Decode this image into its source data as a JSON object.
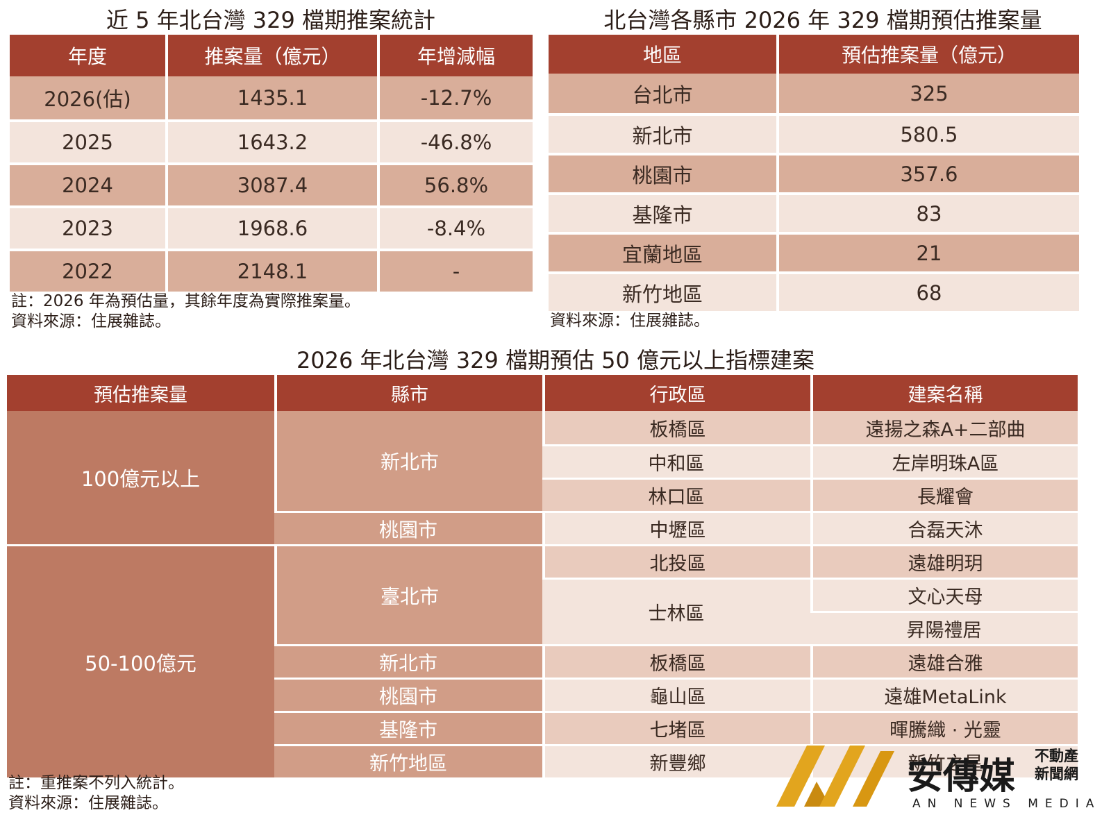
{
  "table1": {
    "title": "近 5 年北台灣 329 檔期推案統計",
    "headers": [
      "年度",
      "推案量（億元）",
      "年增減幅"
    ],
    "rows": [
      [
        "2026(估)",
        "1435.1",
        "-12.7%"
      ],
      [
        "2025",
        "1643.2",
        "-46.8%"
      ],
      [
        "2024",
        "3087.4",
        "56.8%"
      ],
      [
        "2023",
        "1968.6",
        "-8.4%"
      ],
      [
        "2022",
        "2148.1",
        "-"
      ]
    ],
    "note1": "註：2026 年為預估量，其餘年度為實際推案量。",
    "note2": "資料來源：住展雜誌。"
  },
  "table2": {
    "title": "北台灣各縣市 2026 年 329 檔期預估推案量",
    "headers": [
      "地區",
      "預估推案量（億元）"
    ],
    "rows": [
      [
        "台北市",
        "325"
      ],
      [
        "新北市",
        "580.5"
      ],
      [
        "桃園市",
        "357.6"
      ],
      [
        "基隆市",
        "83"
      ],
      [
        "宜蘭地區",
        "21"
      ],
      [
        "新竹地區",
        "68"
      ]
    ],
    "note": "資料來源：住展雜誌。"
  },
  "table3": {
    "title": "2026 年北台灣 329 檔期預估 50 億元以上指標建案",
    "headers": [
      "預估推案量",
      "縣市",
      "行政區",
      "建案名稱"
    ],
    "cat1": "100億元以上",
    "cat2": "50-100億元",
    "cities": [
      "新北市",
      "桃園市",
      "臺北市",
      "新北市",
      "桃園市",
      "基隆市",
      "新竹地區"
    ],
    "districts": [
      "板橋區",
      "中和區",
      "林口區",
      "中壢區",
      "北投區",
      "士林區",
      "板橋區",
      "龜山區",
      "七堵區",
      "新豐鄉"
    ],
    "projects": [
      "遠揚之森A+二部曲",
      "左岸明珠A區",
      "長耀會",
      "合磊天沐",
      "遠雄明玥",
      "文心天母",
      "昇陽禮居",
      "遠雄合雅",
      "遠雄MetaLink",
      "暉騰織 · 光靈",
      "新竹之星"
    ],
    "note1": "註：重推案不列入統計。",
    "note2": "資料來源：住展雜誌。"
  },
  "logo": {
    "name": "安傳媒",
    "side1": "不動產",
    "side2": "新聞網",
    "en": "AN NEWS MEDIA"
  },
  "colors": {
    "header": "#a3402f",
    "row_dark": "#d9ae9a",
    "row_light": "#f3e4dc",
    "category": "#bd7a63",
    "city": "#d19d87",
    "logo_gold": "#e2a51e"
  }
}
